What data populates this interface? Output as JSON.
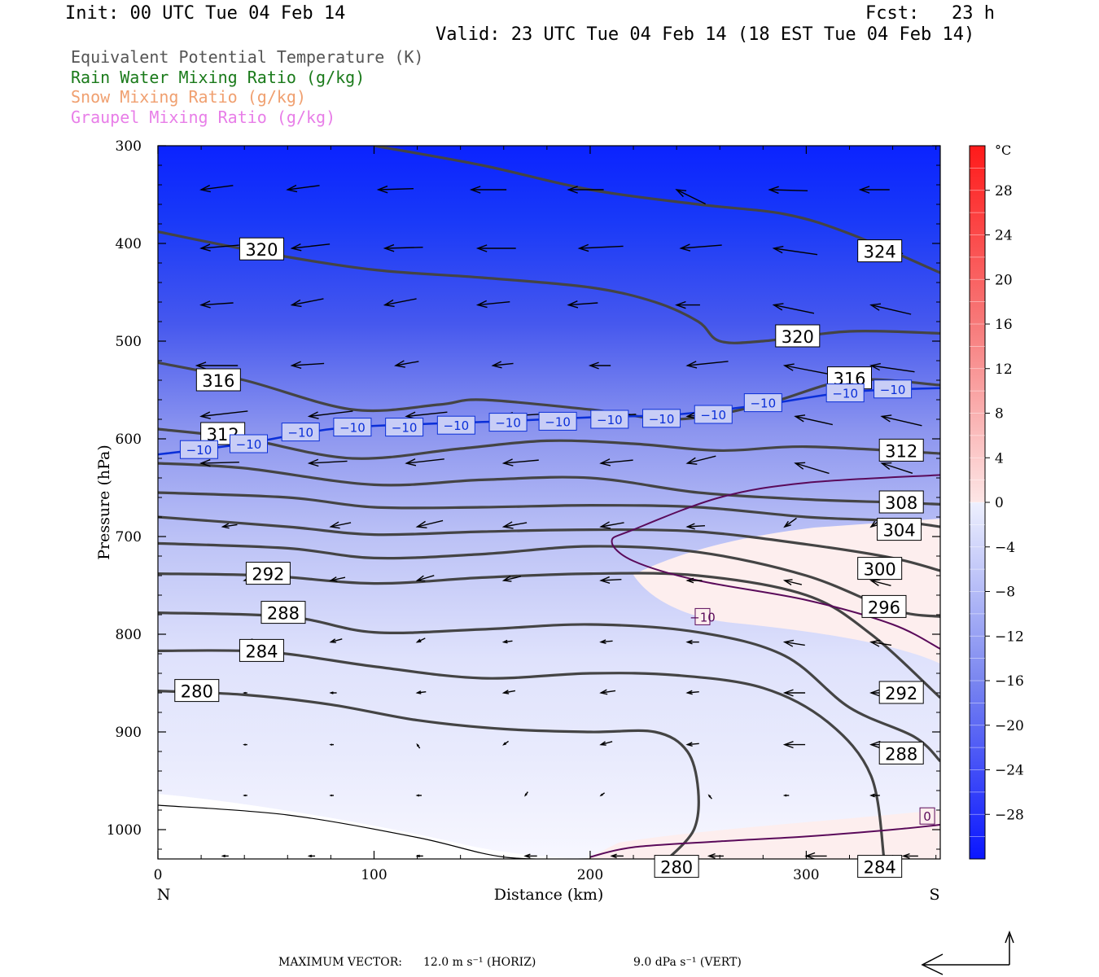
{
  "header": {
    "init": "Init: 00 UTC Tue 04 Feb 14",
    "fcst": "Fcst:   23 h",
    "valid": "Valid: 23 UTC Tue 04 Feb 14 (18 EST Tue 04 Feb 14)"
  },
  "fields": [
    {
      "label": "Equivalent Potential Temperature (K)",
      "color": "#555555"
    },
    {
      "label": "Rain Water Mixing Ratio (g/kg)",
      "color": "#1a7a1a"
    },
    {
      "label": "Snow Mixing Ratio (g/kg)",
      "color": "#f0a070"
    },
    {
      "label": "Graupel Mixing Ratio (g/kg)",
      "color": "#e87ee8"
    }
  ],
  "chart_data": {
    "type": "contour",
    "xlabel": "Distance (km)",
    "ylabel": "Pressure (hPa)",
    "x_ticks": [
      0,
      100,
      200,
      300
    ],
    "y_ticks": [
      300,
      400,
      500,
      600,
      700,
      800,
      900,
      1000
    ],
    "xlim": [
      0,
      362
    ],
    "ylim": [
      300,
      1030
    ],
    "x_end_labels": {
      "left": "N",
      "right": "S"
    },
    "colorbar": {
      "unit": "°C",
      "ticks": [
        "28",
        "24",
        "20",
        "16",
        "12",
        "8",
        "4",
        "0",
        "−4",
        "−8",
        "−12",
        "−16",
        "−20",
        "−24",
        "−28"
      ],
      "range": [
        -32,
        32
      ]
    },
    "theta_e_contours": [
      {
        "label": "280",
        "points": [
          [
            0,
            858
          ],
          [
            40,
            862
          ],
          [
            80,
            872
          ],
          [
            120,
            888
          ],
          [
            160,
            897
          ],
          [
            200,
            900
          ],
          [
            230,
            900
          ],
          [
            245,
            920
          ],
          [
            250,
            960
          ],
          [
            248,
            1000
          ],
          [
            236,
            1030
          ]
        ]
      },
      {
        "label": "284",
        "points": [
          [
            0,
            817
          ],
          [
            50,
            818
          ],
          [
            100,
            833
          ],
          [
            150,
            845
          ],
          [
            200,
            840
          ],
          [
            240,
            842
          ],
          [
            280,
            855
          ],
          [
            310,
            890
          ],
          [
            330,
            945
          ],
          [
            336,
            1030
          ]
        ]
      },
      {
        "label": "288",
        "points": [
          [
            0,
            778
          ],
          [
            60,
            782
          ],
          [
            100,
            798
          ],
          [
            150,
            795
          ],
          [
            200,
            790
          ],
          [
            250,
            798
          ],
          [
            290,
            822
          ],
          [
            320,
            875
          ],
          [
            350,
            905
          ],
          [
            362,
            930
          ]
        ]
      },
      {
        "label": "292",
        "points": [
          [
            0,
            738
          ],
          [
            50,
            740
          ],
          [
            100,
            748
          ],
          [
            150,
            742
          ],
          [
            200,
            738
          ],
          [
            250,
            740
          ],
          [
            300,
            760
          ],
          [
            330,
            800
          ],
          [
            362,
            865
          ]
        ]
      },
      {
        "label": "296",
        "points": [
          [
            0,
            707
          ],
          [
            60,
            712
          ],
          [
            100,
            722
          ],
          [
            150,
            718
          ],
          [
            200,
            710
          ],
          [
            250,
            716
          ],
          [
            300,
            740
          ],
          [
            340,
            775
          ],
          [
            362,
            782
          ]
        ]
      },
      {
        "label": "300",
        "points": [
          [
            0,
            680
          ],
          [
            60,
            690
          ],
          [
            100,
            698
          ],
          [
            150,
            695
          ],
          [
            200,
            693
          ],
          [
            250,
            695
          ],
          [
            300,
            708
          ],
          [
            340,
            722
          ],
          [
            362,
            735
          ]
        ]
      },
      {
        "label": "304",
        "points": [
          [
            0,
            655
          ],
          [
            60,
            660
          ],
          [
            100,
            670
          ],
          [
            150,
            670
          ],
          [
            200,
            668
          ],
          [
            250,
            670
          ],
          [
            300,
            680
          ],
          [
            340,
            684
          ],
          [
            362,
            690
          ]
        ]
      },
      {
        "label": "308",
        "points": [
          [
            0,
            625
          ],
          [
            40,
            630
          ],
          [
            100,
            647
          ],
          [
            150,
            642
          ],
          [
            200,
            640
          ],
          [
            250,
            655
          ],
          [
            300,
            662
          ],
          [
            340,
            665
          ],
          [
            362,
            667
          ]
        ]
      },
      {
        "label": "312",
        "points": [
          [
            0,
            590
          ],
          [
            40,
            600
          ],
          [
            90,
            620
          ],
          [
            140,
            610
          ],
          [
            180,
            602
          ],
          [
            220,
            605
          ],
          [
            260,
            612
          ],
          [
            300,
            608
          ],
          [
            362,
            615
          ]
        ]
      },
      {
        "label": "316",
        "points": [
          [
            0,
            522
          ],
          [
            40,
            540
          ],
          [
            90,
            570
          ],
          [
            130,
            565
          ],
          [
            150,
            560
          ],
          [
            200,
            570
          ],
          [
            240,
            580
          ],
          [
            280,
            565
          ],
          [
            320,
            540
          ],
          [
            362,
            545
          ]
        ]
      },
      {
        "label": "320",
        "points": [
          [
            0,
            388
          ],
          [
            50,
            410
          ],
          [
            100,
            427
          ],
          [
            150,
            435
          ],
          [
            200,
            445
          ],
          [
            230,
            460
          ],
          [
            250,
            480
          ],
          [
            260,
            500
          ],
          [
            280,
            500
          ],
          [
            320,
            490
          ],
          [
            362,
            492
          ]
        ]
      },
      {
        "label": "324",
        "points": [
          [
            100,
            300
          ],
          [
            150,
            320
          ],
          [
            200,
            345
          ],
          [
            250,
            360
          ],
          [
            290,
            370
          ],
          [
            320,
            390
          ],
          [
            362,
            430
          ]
        ]
      }
    ],
    "temperature_contours": [
      {
        "label": "−10",
        "color": "#0a2fd8"
      },
      {
        "label": "0",
        "color": "#5a0a5a"
      }
    ],
    "temperature_contour_labels": [
      "−10",
      "−10",
      "−10",
      "−10",
      "−10",
      "−10",
      "−10",
      "−10",
      "−10",
      "−10",
      "−10",
      "−10",
      "−10",
      "−10",
      "−10",
      "0",
      "0"
    ]
  },
  "footer": {
    "max_vector": "MAXIMUM VECTOR:",
    "horiz": "12.0 m s⁻¹ (HORIZ)",
    "vert": "9.0 dPa s⁻¹ (VERT)"
  }
}
